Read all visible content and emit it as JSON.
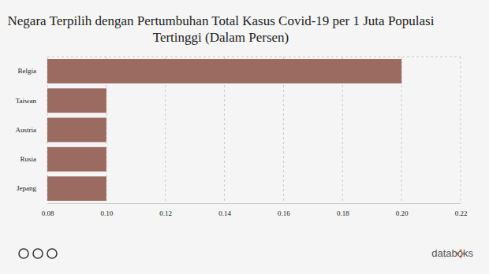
{
  "chart_data": {
    "type": "bar",
    "orientation": "horizontal",
    "title": "Negara Terpilih dengan Pertumbuhan Total Kasus Covid-19 per 1 Juta Populasi Tertinggi (Dalam Persen)",
    "categories": [
      "Belgia",
      "Taiwan",
      "Austria",
      "Rusia",
      "Jepang"
    ],
    "values": [
      0.2,
      0.1,
      0.1,
      0.1,
      0.1
    ],
    "color": "#9b6a60",
    "xlim": [
      0.08,
      0.22
    ],
    "xticks": [
      0.08,
      {
        "value": 0.1,
        "label": "0.10"
      },
      0.12,
      0.14,
      0.16,
      0.18,
      {
        "value": 0.2,
        "label": "0.20"
      },
      0.22
    ],
    "grid": true,
    "source": "databoks"
  }
}
